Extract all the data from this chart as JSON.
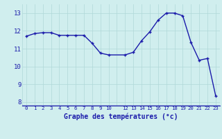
{
  "x": [
    0,
    1,
    2,
    3,
    4,
    5,
    6,
    7,
    8,
    9,
    10,
    12,
    13,
    14,
    15,
    16,
    17,
    18,
    19,
    20,
    21,
    22,
    23
  ],
  "y": [
    11.7,
    11.85,
    11.9,
    11.9,
    11.75,
    11.75,
    11.75,
    11.75,
    11.3,
    10.75,
    10.65,
    10.65,
    10.8,
    11.45,
    11.95,
    12.6,
    13.0,
    13.0,
    12.85,
    11.35,
    10.35,
    10.45,
    8.35
  ],
  "xlabel": "Graphe des températures (°c)",
  "ylim": [
    7.8,
    13.5
  ],
  "yticks": [
    8,
    9,
    10,
    11,
    12,
    13
  ],
  "xtick_positions": [
    0,
    1,
    2,
    3,
    4,
    5,
    6,
    7,
    8,
    9,
    10,
    11,
    12,
    13,
    14,
    15,
    16,
    17,
    18,
    19,
    20,
    21,
    22,
    23
  ],
  "xtick_labels": [
    "0",
    "1",
    "2",
    "3",
    "4",
    "5",
    "6",
    "7",
    "8",
    "9",
    "10",
    "",
    "12",
    "13",
    "14",
    "15",
    "16",
    "17",
    "18",
    "19",
    "20",
    "21",
    "22",
    "23"
  ],
  "line_color": "#1a1aaa",
  "marker_color": "#1a1aaa",
  "bg_color": "#d0eeee",
  "grid_color": "#b0d8d8",
  "axis_label_color": "#1a1aaa",
  "tick_color": "#1a1aaa",
  "xbar_color": "#3333cc"
}
